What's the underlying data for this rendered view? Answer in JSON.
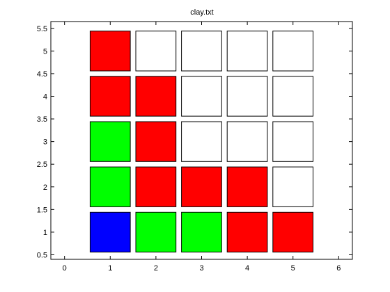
{
  "chart_data": {
    "type": "heatmap",
    "title": "clay.txt",
    "xlabel": "",
    "ylabel": "",
    "xlim": [
      -0.3,
      6.3
    ],
    "ylim": [
      0.4,
      5.65
    ],
    "xticks": [
      0,
      1,
      2,
      3,
      4,
      5,
      6
    ],
    "xtick_labels": [
      "0",
      "1",
      "2",
      "3",
      "4",
      "5",
      "6"
    ],
    "yticks": [
      0.5,
      1,
      1.5,
      2,
      2.5,
      3,
      3.5,
      4,
      4.5,
      5,
      5.5
    ],
    "ytick_labels": [
      "0.5",
      "1",
      "1.5",
      "2",
      "2.5",
      "3",
      "3.5",
      "4",
      "4.5",
      "5",
      "5.5"
    ],
    "cell_size": 0.88,
    "grid": false,
    "colors": {
      "red": "#ff0000",
      "green": "#00ff00",
      "blue": "#0000ff",
      "empty": "#ffffff",
      "edge": "#000000"
    },
    "cells": [
      {
        "x": 1,
        "y": 1,
        "color": "blue"
      },
      {
        "x": 2,
        "y": 1,
        "color": "green"
      },
      {
        "x": 3,
        "y": 1,
        "color": "green"
      },
      {
        "x": 4,
        "y": 1,
        "color": "red"
      },
      {
        "x": 5,
        "y": 1,
        "color": "red"
      },
      {
        "x": 1,
        "y": 2,
        "color": "green"
      },
      {
        "x": 2,
        "y": 2,
        "color": "red"
      },
      {
        "x": 3,
        "y": 2,
        "color": "red"
      },
      {
        "x": 4,
        "y": 2,
        "color": "red"
      },
      {
        "x": 5,
        "y": 2,
        "color": "empty"
      },
      {
        "x": 1,
        "y": 3,
        "color": "green"
      },
      {
        "x": 2,
        "y": 3,
        "color": "red"
      },
      {
        "x": 3,
        "y": 3,
        "color": "empty"
      },
      {
        "x": 4,
        "y": 3,
        "color": "empty"
      },
      {
        "x": 5,
        "y": 3,
        "color": "empty"
      },
      {
        "x": 1,
        "y": 4,
        "color": "red"
      },
      {
        "x": 2,
        "y": 4,
        "color": "red"
      },
      {
        "x": 3,
        "y": 4,
        "color": "empty"
      },
      {
        "x": 4,
        "y": 4,
        "color": "empty"
      },
      {
        "x": 5,
        "y": 4,
        "color": "empty"
      },
      {
        "x": 1,
        "y": 5,
        "color": "red"
      },
      {
        "x": 2,
        "y": 5,
        "color": "empty"
      },
      {
        "x": 3,
        "y": 5,
        "color": "empty"
      },
      {
        "x": 4,
        "y": 5,
        "color": "empty"
      },
      {
        "x": 5,
        "y": 5,
        "color": "empty"
      }
    ]
  }
}
